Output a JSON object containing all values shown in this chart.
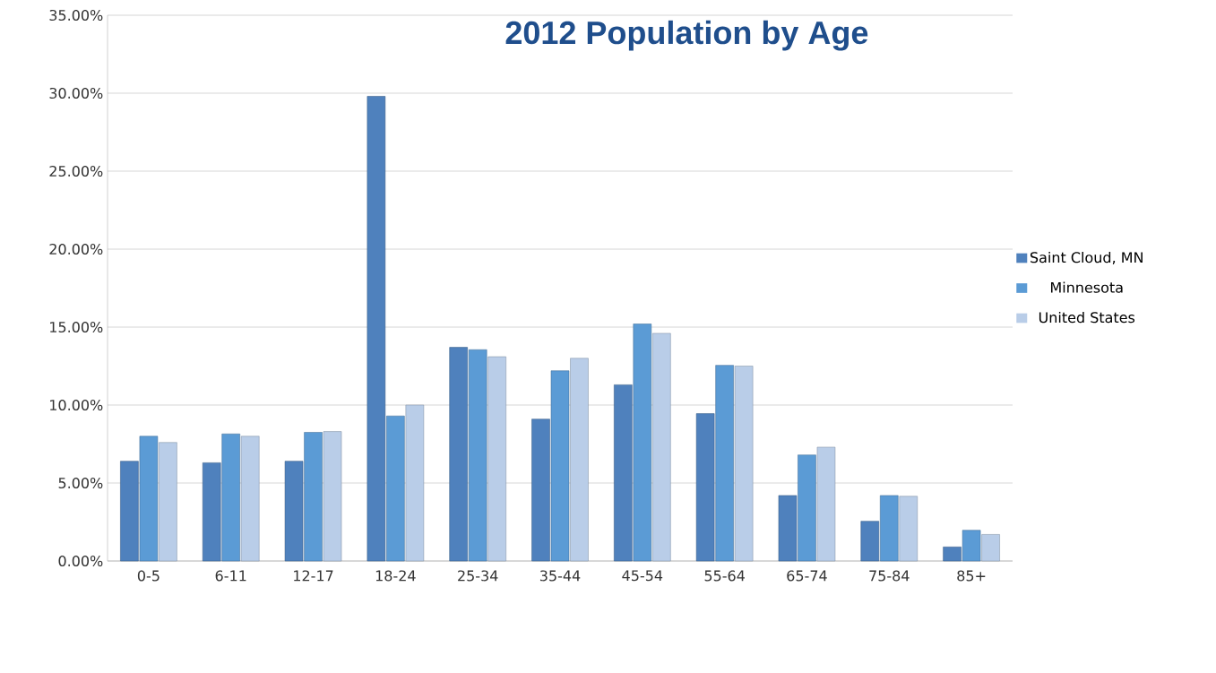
{
  "chart_data": {
    "type": "bar",
    "title": "2012 Population by Age",
    "categories": [
      "0-5",
      "6-11",
      "12-17",
      "18-24",
      "25-34",
      "35-44",
      "45-54",
      "55-64",
      "65-74",
      "75-84",
      "85+"
    ],
    "series": [
      {
        "name": "Saint Cloud, MN",
        "color": "#4f81bd",
        "values": [
          6.4,
          6.3,
          6.4,
          29.8,
          13.7,
          9.1,
          11.3,
          9.45,
          4.2,
          2.55,
          0.9
        ]
      },
      {
        "name": "Minnesota",
        "color": "#5b9bd5",
        "values": [
          8.0,
          8.15,
          8.25,
          9.3,
          13.55,
          12.2,
          15.2,
          12.55,
          6.8,
          4.2,
          1.97
        ]
      },
      {
        "name": "United States",
        "color": "#b9cde8",
        "values": [
          7.6,
          8.0,
          8.3,
          10.0,
          13.1,
          13.0,
          14.6,
          12.5,
          7.3,
          4.15,
          1.7
        ]
      }
    ],
    "ylim": [
      0,
      35
    ],
    "yticks": [
      {
        "value": 0,
        "label": "0.00%"
      },
      {
        "value": 5,
        "label": "5.00%"
      },
      {
        "value": 10,
        "label": "10.00%"
      },
      {
        "value": 15,
        "label": "15.00%"
      },
      {
        "value": 20,
        "label": "20.00%"
      },
      {
        "value": 25,
        "label": "25.00%"
      },
      {
        "value": 30,
        "label": "30.00%"
      },
      {
        "value": 35,
        "label": "35.00%"
      }
    ],
    "grid": "y",
    "legend": "right"
  }
}
